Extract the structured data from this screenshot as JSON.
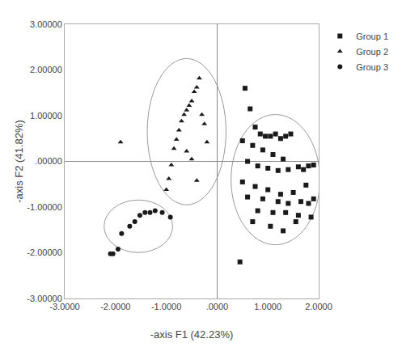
{
  "chart_data": {
    "type": "scatter",
    "xlabel": "-axis F1 (42.23%)",
    "ylabel": "-axis F2 (41.82%)",
    "series": [
      {
        "name": "Group 1",
        "color": "#1a1a1a",
        "marker": "square",
        "x": [
          0.55,
          0.65,
          0.75,
          0.85,
          0.95,
          1.05,
          1.15,
          1.25,
          1.35,
          1.45,
          0.5,
          0.7,
          0.9,
          1.1,
          1.3,
          0.6,
          0.8,
          1.0,
          1.2,
          1.4,
          1.6,
          1.7,
          1.8,
          1.9,
          0.5,
          0.75,
          1.0,
          1.25,
          1.5,
          1.75,
          0.6,
          0.9,
          1.2,
          1.4,
          1.65,
          1.9,
          0.8,
          1.1,
          1.35,
          1.6,
          1.85,
          0.7,
          1.05,
          1.3,
          1.55,
          1.8,
          0.45
        ],
        "values": [
          1.6,
          1.15,
          0.75,
          0.6,
          0.55,
          0.55,
          0.6,
          0.5,
          0.55,
          0.6,
          0.45,
          0.35,
          0.25,
          0.15,
          0.05,
          0.0,
          -0.1,
          -0.15,
          -0.2,
          -0.18,
          -0.12,
          -0.18,
          -0.1,
          -0.08,
          -0.45,
          -0.55,
          -0.62,
          -0.72,
          -0.68,
          -0.52,
          -0.78,
          -0.82,
          -0.88,
          -0.92,
          -0.88,
          -0.82,
          -1.08,
          -1.12,
          -1.12,
          -1.18,
          -1.22,
          -1.32,
          -1.42,
          -1.52,
          -1.32,
          -0.92,
          -2.2
        ]
      },
      {
        "name": "Group 2",
        "color": "#1a1a1a",
        "marker": "triangle-up",
        "x": [
          -1.0,
          -0.95,
          -0.9,
          -0.85,
          -0.8,
          -0.75,
          -0.7,
          -0.65,
          -0.6,
          -0.55,
          -0.5,
          -0.45,
          -0.4,
          -0.35,
          -0.3,
          -0.25,
          -0.2,
          -0.6,
          -0.5,
          -0.4,
          -1.9
        ],
        "values": [
          -0.62,
          -0.38,
          -0.08,
          0.28,
          0.48,
          0.68,
          0.88,
          1.02,
          1.12,
          1.22,
          1.32,
          1.52,
          1.62,
          1.82,
          1.02,
          0.82,
          0.42,
          0.22,
          0.05,
          -0.42,
          0.42
        ]
      },
      {
        "name": "Group 3",
        "color": "#1a1a1a",
        "marker": "circle",
        "x": [
          -2.1,
          -2.05,
          -1.95,
          -1.88,
          -1.72,
          -1.62,
          -1.52,
          -1.42,
          -1.32,
          -1.22,
          -1.08,
          -0.92
        ],
        "values": [
          -2.02,
          -2.02,
          -1.92,
          -1.58,
          -1.42,
          -1.32,
          -1.18,
          -1.12,
          -1.12,
          -1.08,
          -1.12,
          -1.22
        ]
      }
    ],
    "ellipses": [
      {
        "cx": 1.15,
        "cy": -0.4,
        "w": 1.75,
        "h": 2.85,
        "color": "#999999"
      },
      {
        "cx": -0.6,
        "cy": 0.65,
        "w": 1.55,
        "h": 3.2,
        "color": "#999999"
      },
      {
        "cx": -1.55,
        "cy": -1.42,
        "w": 1.35,
        "h": 1.15,
        "color": "#999999"
      }
    ],
    "xlim": [
      -3.0,
      2.0
    ],
    "ylim": [
      -3.0,
      3.0
    ],
    "xticks": [
      {
        "value": -3.0,
        "label": "-3.0000"
      },
      {
        "value": -2.0,
        "label": "-2.0000"
      },
      {
        "value": -1.0,
        "label": "-1.0000"
      },
      {
        "value": 0.0,
        "label": ".0000"
      },
      {
        "value": 1.0,
        "label": "1.0000"
      },
      {
        "value": 2.0,
        "label": "2.0000"
      }
    ],
    "yticks": [
      {
        "value": -3.0,
        "label": "-3.00000"
      },
      {
        "value": -2.0,
        "label": "-2.00000"
      },
      {
        "value": -1.0,
        "label": "-1.00000"
      },
      {
        "value": 0.0,
        "label": ".00000"
      },
      {
        "value": 1.0,
        "label": "1.00000"
      },
      {
        "value": 2.0,
        "label": "2.00000"
      },
      {
        "value": 3.0,
        "label": "3.00000"
      }
    ],
    "grid": false,
    "legend": "right"
  }
}
